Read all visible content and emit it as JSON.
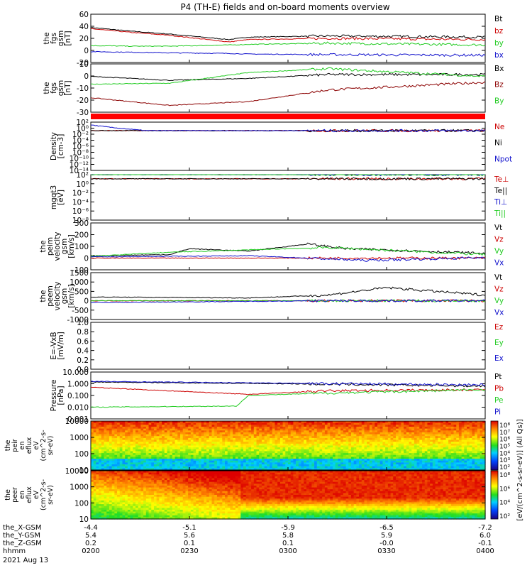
{
  "title": "P4 (TH-E) fields and on-board moments overview",
  "colors": {
    "black": "#000000",
    "red": "#cc0000",
    "green": "#22cc22",
    "blue": "#1010cc",
    "darkred": "#8b0000"
  },
  "chart_data": [
    {
      "type": "line",
      "id": "p1",
      "ylabel": [
        "the",
        "fgs",
        "gsm",
        "[nT]"
      ],
      "ylim": [
        -20,
        60
      ],
      "yticks": [
        "60",
        "40",
        "20",
        "0",
        "-20"
      ],
      "series": [
        {
          "name": "Bt",
          "color": "#000000",
          "x": [
            0,
            10,
            20,
            35,
            40,
            60,
            100
          ],
          "y": [
            38,
            32,
            27,
            18,
            22,
            24,
            22
          ]
        },
        {
          "name": "bz",
          "color": "#cc0000",
          "x": [
            0,
            10,
            20,
            35,
            40,
            60,
            100
          ],
          "y": [
            36,
            30,
            25,
            14,
            18,
            20,
            18
          ]
        },
        {
          "name": "by",
          "color": "#22cc22",
          "x": [
            0,
            10,
            20,
            35,
            40,
            60,
            100
          ],
          "y": [
            8,
            7,
            7,
            9,
            10,
            12,
            9
          ]
        },
        {
          "name": "bx",
          "color": "#1010cc",
          "x": [
            0,
            10,
            20,
            35,
            40,
            60,
            100
          ],
          "y": [
            -2,
            -3,
            -4,
            -5,
            -6,
            -7,
            -8
          ]
        }
      ]
    },
    {
      "type": "line",
      "id": "p2",
      "ylabel": [
        "the",
        "fgs",
        "gsm",
        "[nT]"
      ],
      "ylim": [
        -35,
        15
      ],
      "yticks": [
        "10",
        "0",
        "-10",
        "-20",
        "-30"
      ],
      "series": [
        {
          "name": "Bx",
          "color": "#000000",
          "x": [
            0,
            20,
            40,
            60,
            100
          ],
          "y": [
            2,
            -2,
            0,
            4,
            4
          ]
        },
        {
          "name": "Bz",
          "color": "#8b0000",
          "x": [
            0,
            20,
            40,
            60,
            100
          ],
          "y": [
            -20,
            -28,
            -24,
            -12,
            -4
          ]
        },
        {
          "name": "By",
          "color": "#22cc22",
          "x": [
            0,
            20,
            40,
            60,
            100
          ],
          "y": [
            -6,
            -5,
            6,
            10,
            2
          ]
        }
      ]
    },
    {
      "type": "line",
      "id": "p3",
      "ylabel": [
        "Density",
        "[cm-3]"
      ],
      "ylim": [
        -14,
        3
      ],
      "yscale": "log",
      "yticks": [
        "10²",
        "10⁰",
        "10⁻²",
        "10⁻⁴",
        "10⁻⁶",
        "10⁻⁸",
        "10⁻¹⁰",
        "10⁻¹²",
        "10⁻¹⁴"
      ],
      "series": [
        {
          "name": "Ne",
          "color": "#cc0000",
          "x": [
            0,
            100
          ],
          "y": [
            0,
            0
          ]
        },
        {
          "name": "Ni",
          "color": "#000000",
          "x": [
            0,
            100
          ],
          "y": [
            0,
            0
          ]
        },
        {
          "name": "Npot",
          "color": "#1010cc",
          "x": [
            0,
            6,
            14,
            100
          ],
          "y": [
            2,
            1,
            0,
            0
          ]
        }
      ]
    },
    {
      "type": "line",
      "id": "p4",
      "ylabel": [
        "mgqt3",
        "[eV]"
      ],
      "ylim": [
        -8,
        3
      ],
      "yscale": "log",
      "yticks": [
        "10²",
        "10⁰",
        "10⁻²",
        "10⁻⁴",
        "10⁻⁶",
        "10⁻⁸"
      ],
      "series": [
        {
          "name": "Te⊥",
          "color": "#cc0000",
          "x": [
            0,
            100
          ],
          "y": [
            2,
            2
          ]
        },
        {
          "name": "Te||",
          "color": "#000000",
          "x": [
            0,
            100
          ],
          "y": [
            2,
            2
          ]
        },
        {
          "name": "Ti⊥",
          "color": "#1010cc",
          "x": [
            0,
            100
          ],
          "y": [
            3,
            3
          ]
        },
        {
          "name": "Ti||",
          "color": "#22cc22",
          "x": [
            0,
            100
          ],
          "y": [
            3,
            3
          ]
        }
      ]
    },
    {
      "type": "line",
      "id": "p5",
      "ylabel": [
        "the",
        "peim",
        "velocity",
        "gsm",
        "[km/s]"
      ],
      "ylim": [
        -100,
        300
      ],
      "yticks": [
        "300",
        "200",
        "100",
        "0",
        "-100"
      ],
      "series": [
        {
          "name": "Vt",
          "color": "#000000",
          "x": [
            0,
            20,
            25,
            40,
            55,
            65,
            75,
            100
          ],
          "y": [
            20,
            30,
            80,
            60,
            120,
            80,
            70,
            40
          ]
        },
        {
          "name": "Vz",
          "color": "#cc0000",
          "x": [
            0,
            50,
            100
          ],
          "y": [
            0,
            0,
            0
          ]
        },
        {
          "name": "Vy",
          "color": "#22cc22",
          "x": [
            0,
            20,
            40,
            60,
            100
          ],
          "y": [
            15,
            50,
            70,
            90,
            30
          ]
        },
        {
          "name": "Vx",
          "color": "#1010cc",
          "x": [
            0,
            40,
            70,
            100
          ],
          "y": [
            10,
            20,
            -20,
            5
          ]
        }
      ]
    },
    {
      "type": "line",
      "id": "p6",
      "ylabel": [
        "the",
        "peem",
        "velocity",
        "gsm",
        "[km/s]"
      ],
      "ylim": [
        -1000,
        1500
      ],
      "yticks": [
        "1500",
        "1000",
        "500",
        "0",
        "-500",
        "-1000"
      ],
      "series": [
        {
          "name": "Vt",
          "color": "#000000",
          "x": [
            0,
            40,
            60,
            75,
            100
          ],
          "y": [
            200,
            150,
            300,
            700,
            300
          ]
        },
        {
          "name": "Vz",
          "color": "#cc0000",
          "x": [
            0,
            60,
            100
          ],
          "y": [
            0,
            0,
            0
          ]
        },
        {
          "name": "Vy",
          "color": "#22cc22",
          "x": [
            0,
            60,
            100
          ],
          "y": [
            0,
            0,
            0
          ]
        },
        {
          "name": "Vx",
          "color": "#1010cc",
          "x": [
            0,
            60,
            100
          ],
          "y": [
            -100,
            0,
            0
          ]
        }
      ]
    },
    {
      "type": "line",
      "id": "p7",
      "ylabel": [
        "E=-VxB",
        "[mV/m]"
      ],
      "ylim": [
        0,
        1
      ],
      "yticks": [
        "1.0",
        "0.8",
        "0.6",
        "0.4",
        "0.2",
        "0.0"
      ],
      "series": [
        {
          "name": "Ez",
          "color": "#cc0000",
          "x": [],
          "y": []
        },
        {
          "name": "Ey",
          "color": "#22cc22",
          "x": [],
          "y": []
        },
        {
          "name": "Ex",
          "color": "#1010cc",
          "x": [],
          "y": []
        }
      ]
    },
    {
      "type": "line",
      "id": "p8",
      "ylabel": [
        "Pressure",
        "[nPa]"
      ],
      "ylim": [
        -3,
        1
      ],
      "yscale": "log",
      "yticks": [
        "10.000",
        "1.000",
        "0.100",
        "0.010",
        "0.001"
      ],
      "series": [
        {
          "name": "Pt",
          "color": "#000000",
          "x": [
            0,
            50,
            100
          ],
          "y": [
            0.15,
            0.0,
            -0.2
          ]
        },
        {
          "name": "Pb",
          "color": "#cc0000",
          "x": [
            0,
            40,
            60,
            100
          ],
          "y": [
            -0.3,
            -0.9,
            -0.6,
            -0.5
          ]
        },
        {
          "name": "Pe",
          "color": "#22cc22",
          "x": [
            0,
            37,
            40,
            60,
            100
          ],
          "y": [
            -2.0,
            -1.9,
            -1.0,
            -0.8,
            -0.5
          ]
        },
        {
          "name": "Pi",
          "color": "#1010cc",
          "x": [
            0,
            50,
            100
          ],
          "y": [
            0.2,
            0.05,
            -0.1
          ]
        }
      ]
    },
    {
      "type": "heatmap",
      "id": "p9",
      "ylabel": [
        "the",
        "peir",
        "en",
        "eflux",
        "eV",
        "(cm^2-s-",
        "sr-eV)"
      ],
      "yscale": "log",
      "yticks": [
        "10000",
        "1000",
        "100",
        "10"
      ],
      "zticks": [
        "10⁸",
        "10⁷",
        "10⁶",
        "10⁵",
        "10⁴",
        "10³",
        "10²"
      ]
    },
    {
      "type": "heatmap",
      "id": "p10",
      "ylabel": [
        "the",
        "peer",
        "en",
        "eflux",
        "eV",
        "(cm^2-s-",
        "sr-eV)"
      ],
      "yscale": "log",
      "yticks": [
        "10000",
        "1000",
        "100",
        "10"
      ],
      "zticks": [
        "10⁸",
        "10⁶",
        "10⁴",
        "10²"
      ]
    }
  ],
  "colorbar_label": "[eV/(cm^2-s-sr-eV)] (All Qs)]",
  "xaxis": {
    "rows": [
      {
        "label": "the_X-GSM",
        "values": [
          "-4.4",
          "-5.1",
          "-5.9",
          "-6.5",
          "-7.2"
        ]
      },
      {
        "label": "the_Y-GSM",
        "values": [
          "5.4",
          "5.6",
          "5.8",
          "5.9",
          "6.0"
        ]
      },
      {
        "label": "the_Z-GSM",
        "values": [
          "0.2",
          "0.1",
          "0.1",
          "-0.0",
          "-0.1"
        ]
      },
      {
        "label": "hhmm",
        "values": [
          "0200",
          "0230",
          "0300",
          "0330",
          "0400"
        ]
      }
    ],
    "date": "2021 Aug 13"
  }
}
